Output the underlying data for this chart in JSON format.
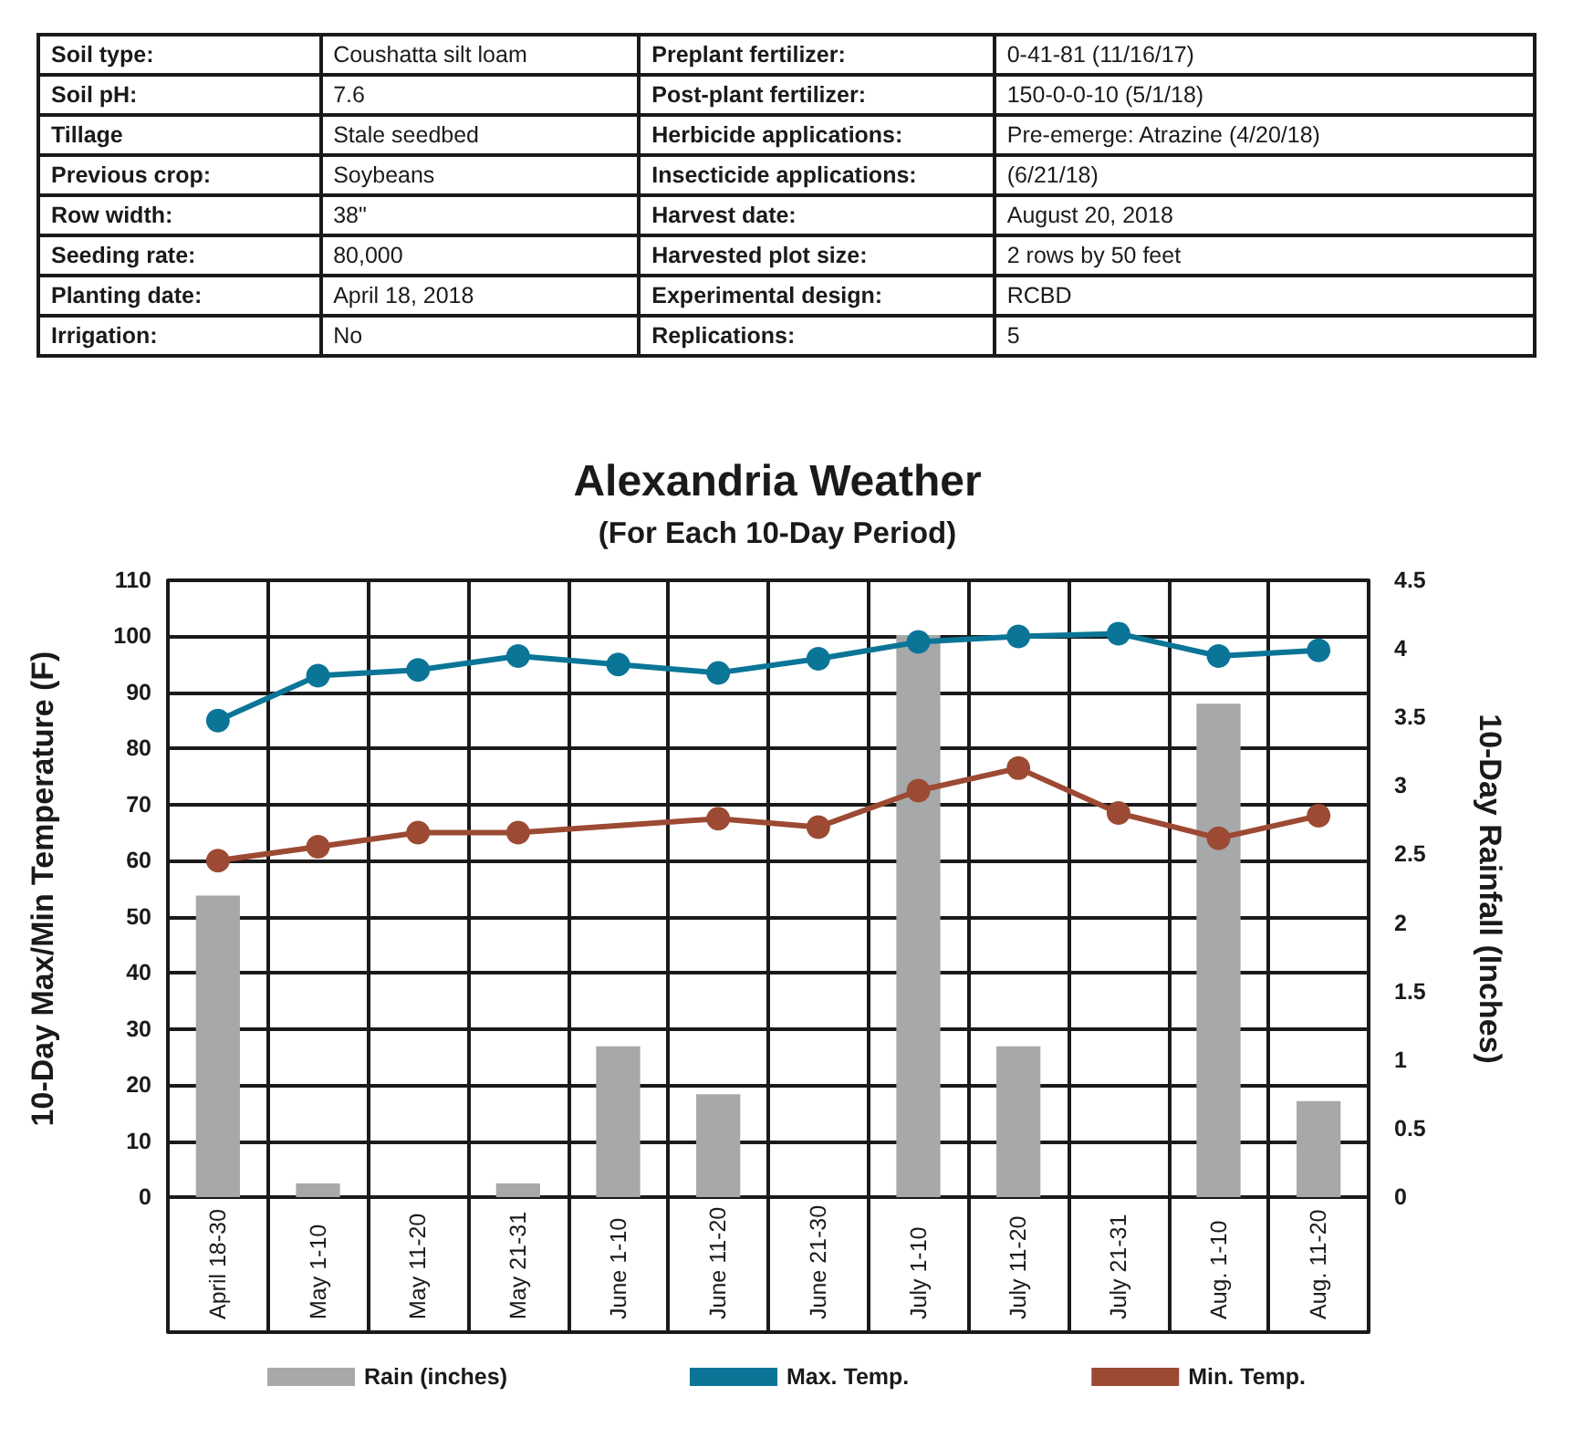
{
  "chart_data": [
    {
      "type": "other",
      "annotations": [
        "Soil type:",
        "Coushatta silt loam",
        "Preplant fertilizer:",
        "0-41-81 (11/16/17)",
        "Soil pH:",
        "7.6",
        "Post-plant fertilizer:",
        "150-0-0-10 (5/1/18)",
        "Tillage",
        "Stale seedbed",
        "Herbicide applications:",
        "Pre-emerge: Atrazine (4/20/18)",
        "Previous crop:",
        "Soybeans",
        "Insecticide applications:",
        "(6/21/18)",
        "Row width:",
        "38\"",
        "Harvest date:",
        "August 20, 2018",
        "Seeding rate:",
        "80,000",
        "Harvested plot size:",
        "2 rows by 50 feet",
        "Planting date:",
        "April 18, 2018",
        "Experimental design:",
        "RCBD",
        "Irrigation:",
        "No",
        "Replications:",
        "5"
      ]
    },
    {
      "type": "bar",
      "title": "Alexandria Weather",
      "subtitle": "(For Each 10-Day Period)",
      "ylabel": "10-Day Max/Min Temperature (F)",
      "y2label": "10-Day Rainfall (Inches)",
      "categories": [
        "April 18-30",
        "May 1-10",
        "May 11-20",
        "May 21-31",
        "June 1-10",
        "June 11-20",
        "June 21-30",
        "July 1-10",
        "July 11-20",
        "July 21-31",
        "Aug. 1-10",
        "Aug. 11-20"
      ],
      "series": [
        {
          "name": "Rain (inches)",
          "type": "bar",
          "axis": "y2",
          "color": "#a7a8aa",
          "values": [
            2.2,
            0.1,
            0,
            0.1,
            1.1,
            0.75,
            0,
            4.1,
            1.1,
            0,
            3.6,
            0.7
          ]
        },
        {
          "name": "Max. Temp.",
          "type": "line",
          "color": "#0b7597",
          "values": [
            85,
            93,
            94,
            96.5,
            95,
            93.5,
            96,
            99,
            100,
            100.5,
            96.5,
            97.5
          ]
        },
        {
          "name": "Min. Temp.",
          "type": "line",
          "color": "#9c4a33",
          "values": [
            60,
            62.5,
            65,
            65,
            null,
            67.5,
            66,
            72.5,
            76.5,
            68.5,
            64,
            68
          ]
        }
      ],
      "ylim": [
        0,
        110
      ],
      "yticks": [
        0,
        10,
        20,
        30,
        40,
        50,
        60,
        70,
        80,
        90,
        100,
        110
      ],
      "y2lim": [
        0,
        4.5
      ],
      "y2ticks": [
        0,
        0.5,
        1,
        1.5,
        2,
        2.5,
        3,
        3.5,
        4,
        4.5
      ],
      "grid": true,
      "legend": "bottom",
      "marker": "circle",
      "line_style": "solid"
    }
  ]
}
